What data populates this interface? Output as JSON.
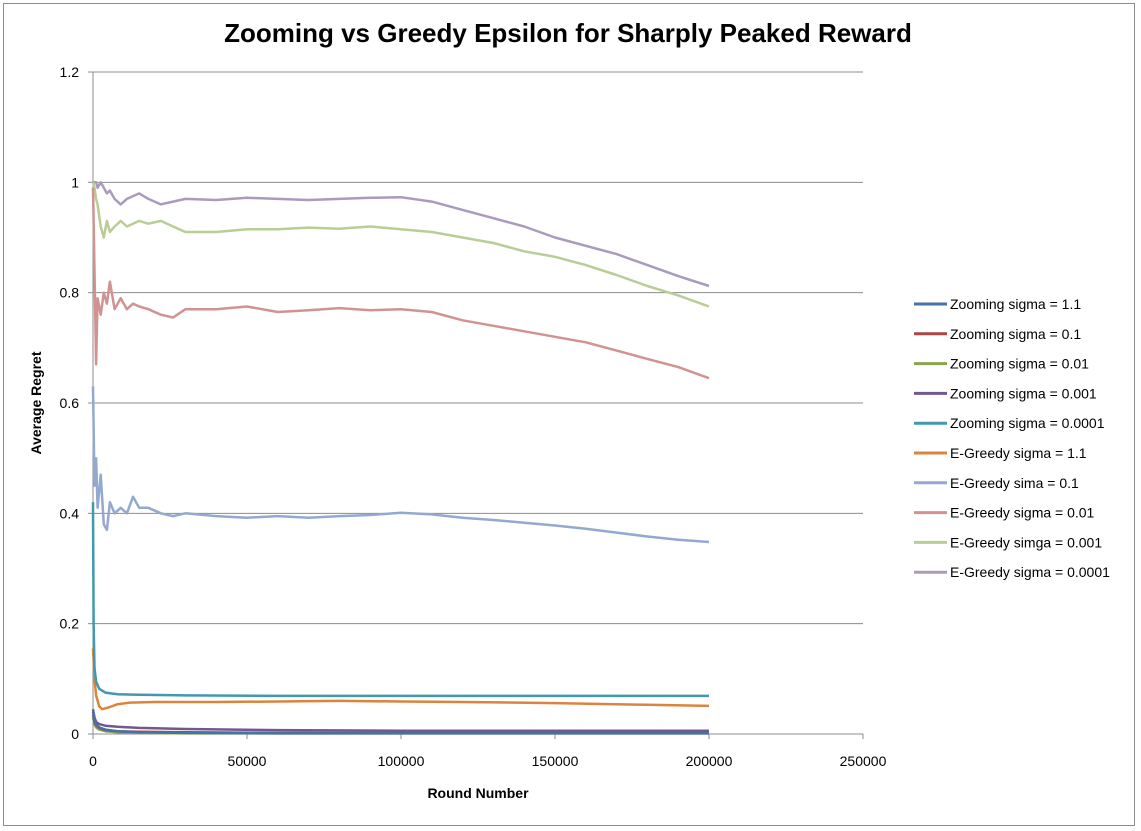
{
  "chart_data": {
    "type": "line",
    "title": "Zooming vs Greedy Epsilon for Sharply Peaked Reward",
    "xlabel": "Round Number",
    "ylabel": "Average Regret",
    "xlim": [
      0,
      250000
    ],
    "ylim": [
      0,
      1.2
    ],
    "xticks": [
      "0",
      "50000",
      "100000",
      "150000",
      "200000",
      "250000"
    ],
    "yticks": [
      "0",
      "0.2",
      "0.4",
      "0.6",
      "0.8",
      "1",
      "1.2"
    ],
    "grid": "horizontal",
    "legend_position": "right",
    "series": [
      {
        "name": "Zooming sigma = 1.1",
        "color": "#4572a7",
        "x": [
          0,
          500,
          1000,
          2000,
          4000,
          8000,
          15000,
          30000,
          60000,
          100000,
          150000,
          200000
        ],
        "y": [
          0.04,
          0.025,
          0.018,
          0.012,
          0.008,
          0.005,
          0.003,
          0.002,
          0.001,
          0.001,
          0.001,
          0.001
        ]
      },
      {
        "name": "Zooming sigma = 0.1",
        "color": "#aa4643",
        "x": [
          0,
          500,
          1000,
          2000,
          4000,
          8000,
          15000,
          30000,
          60000,
          100000,
          150000,
          200000
        ],
        "y": [
          0.035,
          0.022,
          0.016,
          0.011,
          0.007,
          0.005,
          0.004,
          0.003,
          0.002,
          0.002,
          0.002,
          0.002
        ]
      },
      {
        "name": "Zooming sigma = 0.01",
        "color": "#89a54e",
        "x": [
          0,
          500,
          1000,
          2000,
          4000,
          8000,
          15000,
          30000,
          60000,
          100000,
          150000,
          200000
        ],
        "y": [
          0.03,
          0.018,
          0.012,
          0.008,
          0.005,
          0.003,
          0.002,
          0.001,
          0.001,
          0.001,
          0.001,
          0.001
        ]
      },
      {
        "name": "Zooming sigma = 0.001",
        "color": "#71588f",
        "x": [
          0,
          500,
          1000,
          2000,
          4000,
          8000,
          15000,
          30000,
          60000,
          100000,
          150000,
          200000
        ],
        "y": [
          0.045,
          0.03,
          0.022,
          0.018,
          0.015,
          0.013,
          0.011,
          0.009,
          0.007,
          0.006,
          0.006,
          0.006
        ]
      },
      {
        "name": "Zooming sigma = 0.0001",
        "color": "#4198af",
        "x": [
          0,
          200,
          500,
          1000,
          2000,
          4000,
          8000,
          15000,
          30000,
          60000,
          100000,
          150000,
          200000
        ],
        "y": [
          0.42,
          0.2,
          0.12,
          0.095,
          0.082,
          0.075,
          0.072,
          0.071,
          0.07,
          0.069,
          0.069,
          0.069,
          0.069
        ]
      },
      {
        "name": "E-Greedy sigma = 1.1",
        "color": "#db843d",
        "x": [
          0,
          500,
          1000,
          2000,
          3000,
          5000,
          8000,
          12000,
          20000,
          40000,
          60000,
          80000,
          100000,
          120000,
          150000,
          180000,
          200000
        ],
        "y": [
          0.155,
          0.1,
          0.07,
          0.05,
          0.045,
          0.048,
          0.054,
          0.057,
          0.058,
          0.058,
          0.059,
          0.06,
          0.059,
          0.058,
          0.056,
          0.053,
          0.051
        ]
      },
      {
        "name": "E-Greedy sima = 0.1",
        "color": "#93a9cf",
        "x": [
          0,
          500,
          1000,
          1500,
          2500,
          3500,
          4500,
          5500,
          7000,
          9000,
          11000,
          13000,
          15000,
          18000,
          22000,
          26000,
          30000,
          40000,
          50000,
          60000,
          70000,
          80000,
          90000,
          100000,
          110000,
          120000,
          130000,
          140000,
          150000,
          160000,
          170000,
          180000,
          190000,
          200000
        ],
        "y": [
          0.63,
          0.45,
          0.5,
          0.41,
          0.47,
          0.38,
          0.37,
          0.42,
          0.4,
          0.41,
          0.4,
          0.43,
          0.41,
          0.41,
          0.4,
          0.395,
          0.4,
          0.395,
          0.392,
          0.395,
          0.392,
          0.395,
          0.397,
          0.401,
          0.398,
          0.392,
          0.388,
          0.383,
          0.378,
          0.372,
          0.365,
          0.358,
          0.352,
          0.348
        ]
      },
      {
        "name": "E-Greedy sigma = 0.01",
        "color": "#d19392",
        "x": [
          0,
          500,
          1000,
          1500,
          2500,
          3500,
          4500,
          5500,
          7000,
          9000,
          11000,
          13000,
          15000,
          18000,
          22000,
          26000,
          30000,
          40000,
          50000,
          60000,
          70000,
          80000,
          90000,
          100000,
          110000,
          120000,
          130000,
          140000,
          150000,
          160000,
          170000,
          180000,
          190000,
          200000
        ],
        "y": [
          0.99,
          0.84,
          0.67,
          0.79,
          0.76,
          0.8,
          0.78,
          0.82,
          0.77,
          0.79,
          0.77,
          0.78,
          0.775,
          0.77,
          0.76,
          0.755,
          0.77,
          0.77,
          0.775,
          0.765,
          0.768,
          0.772,
          0.768,
          0.77,
          0.765,
          0.75,
          0.74,
          0.73,
          0.72,
          0.71,
          0.695,
          0.68,
          0.665,
          0.645
        ]
      },
      {
        "name": "E-Greedy simga = 0.001",
        "color": "#b9cd96",
        "x": [
          0,
          500,
          1000,
          1500,
          2500,
          3500,
          4500,
          5500,
          7000,
          9000,
          11000,
          13000,
          15000,
          18000,
          22000,
          26000,
          30000,
          40000,
          50000,
          60000,
          70000,
          80000,
          90000,
          100000,
          110000,
          120000,
          130000,
          140000,
          150000,
          160000,
          170000,
          180000,
          190000,
          200000
        ],
        "y": [
          1.0,
          0.99,
          0.97,
          0.96,
          0.92,
          0.9,
          0.93,
          0.91,
          0.92,
          0.93,
          0.92,
          0.925,
          0.93,
          0.925,
          0.93,
          0.92,
          0.91,
          0.91,
          0.915,
          0.915,
          0.918,
          0.916,
          0.92,
          0.915,
          0.91,
          0.9,
          0.89,
          0.875,
          0.865,
          0.85,
          0.832,
          0.812,
          0.795,
          0.775
        ]
      },
      {
        "name": "E-Greedy sigma = 0.0001",
        "color": "#a99bbd",
        "x": [
          0,
          500,
          1000,
          1500,
          2500,
          3500,
          4500,
          5500,
          7000,
          9000,
          11000,
          13000,
          15000,
          18000,
          22000,
          26000,
          30000,
          40000,
          50000,
          60000,
          70000,
          80000,
          90000,
          100000,
          110000,
          120000,
          130000,
          140000,
          150000,
          160000,
          170000,
          180000,
          190000,
          200000
        ],
        "y": [
          1.0,
          1.0,
          1.0,
          0.99,
          1.0,
          0.99,
          0.98,
          0.985,
          0.97,
          0.96,
          0.97,
          0.975,
          0.98,
          0.97,
          0.96,
          0.965,
          0.97,
          0.968,
          0.972,
          0.97,
          0.968,
          0.97,
          0.972,
          0.973,
          0.965,
          0.95,
          0.935,
          0.92,
          0.9,
          0.885,
          0.87,
          0.85,
          0.83,
          0.812
        ]
      }
    ]
  }
}
